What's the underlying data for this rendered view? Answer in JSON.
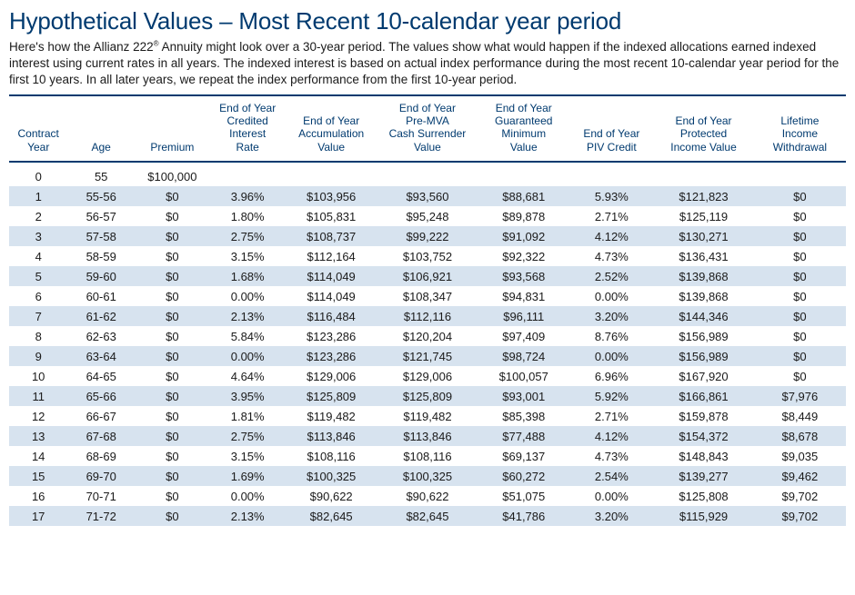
{
  "title": "Hypothetical Values – Most Recent 10-calendar year period",
  "intro_html": "Here's how the Allianz 222<sup>®</sup> Annuity might look over a 30-year period.  The values show what would happen if the indexed allocations earned indexed interest using current rates in all years.  The indexed interest is based on actual index performance during the most recent 10-calendar year period for the first 10 years.  In all later years, we repeat the index performance from the first 10-year period.",
  "colors": {
    "brand": "#003a6f",
    "stripe": "#d7e3ef",
    "text": "#1a1a1a",
    "bg": "#ffffff"
  },
  "columns": [
    {
      "key": "year",
      "label": "Contract\nYear"
    },
    {
      "key": "age",
      "label": "Age"
    },
    {
      "key": "premium",
      "label": "Premium"
    },
    {
      "key": "rate",
      "label": "End of Year\nCredited\nInterest\nRate"
    },
    {
      "key": "accum",
      "label": "End of Year\nAccumulation\nValue"
    },
    {
      "key": "surr",
      "label": "End of Year\nPre-MVA\nCash Surrender\nValue"
    },
    {
      "key": "gmin",
      "label": "End of Year\nGuaranteed\nMinimum\nValue"
    },
    {
      "key": "piv",
      "label": "End of Year\nPIV Credit"
    },
    {
      "key": "protect",
      "label": "End of Year\nProtected\nIncome Value"
    },
    {
      "key": "life",
      "label": "Lifetime\nIncome\nWithdrawal"
    }
  ],
  "rows": [
    {
      "year": "0",
      "age": "55",
      "premium": "$100,000",
      "rate": "",
      "accum": "",
      "surr": "",
      "gmin": "",
      "piv": "",
      "protect": "",
      "life": ""
    },
    {
      "year": "1",
      "age": "55-56",
      "premium": "$0",
      "rate": "3.96%",
      "accum": "$103,956",
      "surr": "$93,560",
      "gmin": "$88,681",
      "piv": "5.93%",
      "protect": "$121,823",
      "life": "$0"
    },
    {
      "year": "2",
      "age": "56-57",
      "premium": "$0",
      "rate": "1.80%",
      "accum": "$105,831",
      "surr": "$95,248",
      "gmin": "$89,878",
      "piv": "2.71%",
      "protect": "$125,119",
      "life": "$0"
    },
    {
      "year": "3",
      "age": "57-58",
      "premium": "$0",
      "rate": "2.75%",
      "accum": "$108,737",
      "surr": "$99,222",
      "gmin": "$91,092",
      "piv": "4.12%",
      "protect": "$130,271",
      "life": "$0"
    },
    {
      "year": "4",
      "age": "58-59",
      "premium": "$0",
      "rate": "3.15%",
      "accum": "$112,164",
      "surr": "$103,752",
      "gmin": "$92,322",
      "piv": "4.73%",
      "protect": "$136,431",
      "life": "$0"
    },
    {
      "year": "5",
      "age": "59-60",
      "premium": "$0",
      "rate": "1.68%",
      "accum": "$114,049",
      "surr": "$106,921",
      "gmin": "$93,568",
      "piv": "2.52%",
      "protect": "$139,868",
      "life": "$0"
    },
    {
      "year": "6",
      "age": "60-61",
      "premium": "$0",
      "rate": "0.00%",
      "accum": "$114,049",
      "surr": "$108,347",
      "gmin": "$94,831",
      "piv": "0.00%",
      "protect": "$139,868",
      "life": "$0"
    },
    {
      "year": "7",
      "age": "61-62",
      "premium": "$0",
      "rate": "2.13%",
      "accum": "$116,484",
      "surr": "$112,116",
      "gmin": "$96,111",
      "piv": "3.20%",
      "protect": "$144,346",
      "life": "$0"
    },
    {
      "year": "8",
      "age": "62-63",
      "premium": "$0",
      "rate": "5.84%",
      "accum": "$123,286",
      "surr": "$120,204",
      "gmin": "$97,409",
      "piv": "8.76%",
      "protect": "$156,989",
      "life": "$0"
    },
    {
      "year": "9",
      "age": "63-64",
      "premium": "$0",
      "rate": "0.00%",
      "accum": "$123,286",
      "surr": "$121,745",
      "gmin": "$98,724",
      "piv": "0.00%",
      "protect": "$156,989",
      "life": "$0"
    },
    {
      "year": "10",
      "age": "64-65",
      "premium": "$0",
      "rate": "4.64%",
      "accum": "$129,006",
      "surr": "$129,006",
      "gmin": "$100,057",
      "piv": "6.96%",
      "protect": "$167,920",
      "life": "$0"
    },
    {
      "year": "11",
      "age": "65-66",
      "premium": "$0",
      "rate": "3.95%",
      "accum": "$125,809",
      "surr": "$125,809",
      "gmin": "$93,001",
      "piv": "5.92%",
      "protect": "$166,861",
      "life": "$7,976"
    },
    {
      "year": "12",
      "age": "66-67",
      "premium": "$0",
      "rate": "1.81%",
      "accum": "$119,482",
      "surr": "$119,482",
      "gmin": "$85,398",
      "piv": "2.71%",
      "protect": "$159,878",
      "life": "$8,449"
    },
    {
      "year": "13",
      "age": "67-68",
      "premium": "$0",
      "rate": "2.75%",
      "accum": "$113,846",
      "surr": "$113,846",
      "gmin": "$77,488",
      "piv": "4.12%",
      "protect": "$154,372",
      "life": "$8,678"
    },
    {
      "year": "14",
      "age": "68-69",
      "premium": "$0",
      "rate": "3.15%",
      "accum": "$108,116",
      "surr": "$108,116",
      "gmin": "$69,137",
      "piv": "4.73%",
      "protect": "$148,843",
      "life": "$9,035"
    },
    {
      "year": "15",
      "age": "69-70",
      "premium": "$0",
      "rate": "1.69%",
      "accum": "$100,325",
      "surr": "$100,325",
      "gmin": "$60,272",
      "piv": "2.54%",
      "protect": "$139,277",
      "life": "$9,462"
    },
    {
      "year": "16",
      "age": "70-71",
      "premium": "$0",
      "rate": "0.00%",
      "accum": "$90,622",
      "surr": "$90,622",
      "gmin": "$51,075",
      "piv": "0.00%",
      "protect": "$125,808",
      "life": "$9,702"
    },
    {
      "year": "17",
      "age": "71-72",
      "premium": "$0",
      "rate": "2.13%",
      "accum": "$82,645",
      "surr": "$82,645",
      "gmin": "$41,786",
      "piv": "3.20%",
      "protect": "$115,929",
      "life": "$9,702"
    }
  ]
}
